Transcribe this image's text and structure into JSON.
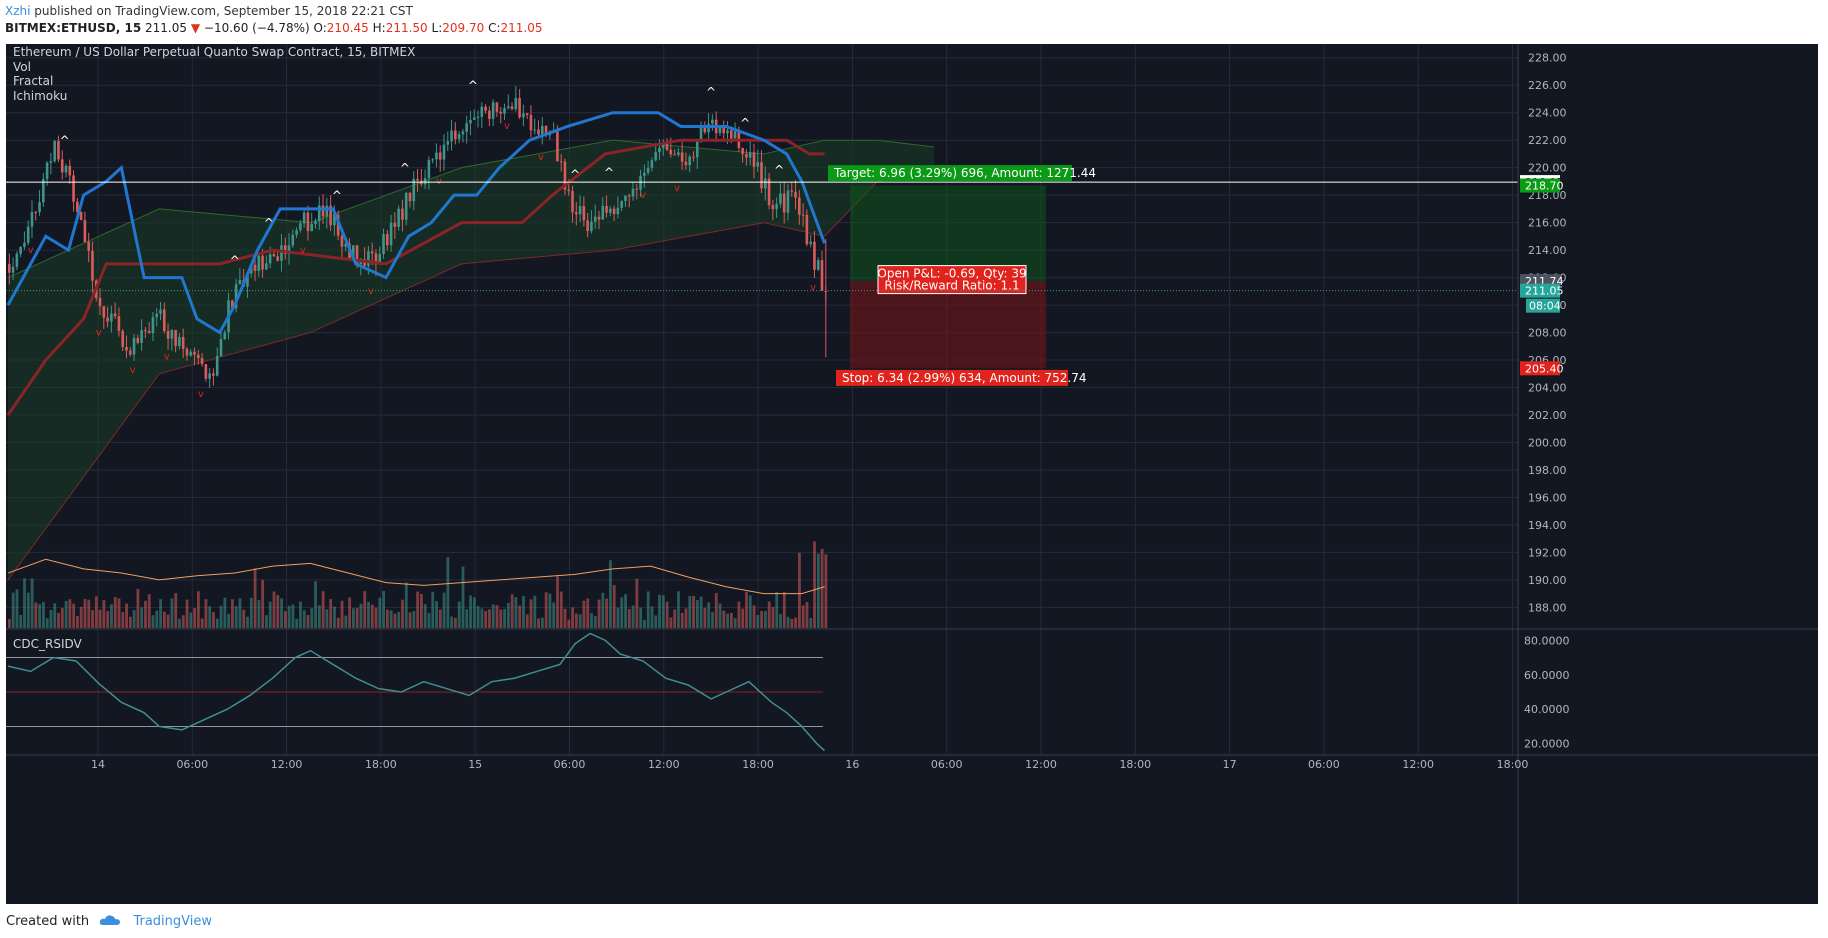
{
  "header": {
    "author": "Xzhi",
    "published": "published on TradingView.com, September 15, 2018 22:21 CST",
    "symbol": "BITMEX:ETHUSD, 15",
    "last": "211.05",
    "arrow": "▼",
    "change": "−10.60 (−4.78%)",
    "o_label": "O:",
    "o": "210.45",
    "h_label": "H:",
    "h": "211.50",
    "l_label": "L:",
    "l": "209.70",
    "c_label": "C:",
    "c": "211.05"
  },
  "legend": {
    "title": "Ethereum / US Dollar Perpetual Quanto Swap Contract, 15, BITMEX",
    "indicators": [
      "Vol",
      "Fractal",
      "Ichimoku"
    ]
  },
  "footer": {
    "created_with": "Created with",
    "brand": "TradingView"
  },
  "colors": {
    "background": "#131722",
    "grid": "#262b3a",
    "bull": "#3e958b",
    "bear": "#d95c5b",
    "baseline": "#1f77d0",
    "conversion": "#8b2328",
    "volume_ma": "#f0a060",
    "target": "#0a9b16",
    "stop": "#e0231c",
    "rsi": "#3f8e93"
  },
  "chart_data": [
    {
      "type": "candlestick",
      "title": "Ethereum / US Dollar Perpetual Quanto Swap Contract, 15, BITMEX",
      "ylim": [
        186.5,
        229.0
      ],
      "price_ticks": [
        "228.00",
        "226.00",
        "224.00",
        "222.00",
        "220.00",
        "218.00",
        "216.00",
        "214.00",
        "212.00",
        "210.00",
        "208.00",
        "206.00",
        "204.00",
        "202.00",
        "200.00",
        "198.00",
        "196.00",
        "194.00",
        "192.00",
        "190.00",
        "188.00"
      ],
      "time_ticks": [
        "14",
        "06:00",
        "12:00",
        "18:00",
        "15",
        "06:00",
        "12:00",
        "18:00",
        "16",
        "06:00",
        "12:00",
        "18:00",
        "17",
        "06:00",
        "12:00",
        "18:00"
      ],
      "price_path": [
        [
          0,
          213
        ],
        [
          6,
          216
        ],
        [
          12,
          222
        ],
        [
          18,
          217
        ],
        [
          24,
          210
        ],
        [
          32,
          207
        ],
        [
          40,
          209
        ],
        [
          48,
          206
        ],
        [
          54,
          205
        ],
        [
          58,
          210
        ],
        [
          66,
          213
        ],
        [
          72,
          214
        ],
        [
          78,
          216
        ],
        [
          84,
          217
        ],
        [
          90,
          214
        ],
        [
          96,
          213
        ],
        [
          102,
          216
        ],
        [
          108,
          219
        ],
        [
          114,
          221
        ],
        [
          120,
          223
        ],
        [
          126,
          224
        ],
        [
          132,
          225
        ],
        [
          136,
          224
        ],
        [
          140,
          223
        ],
        [
          144,
          222
        ],
        [
          148,
          218
        ],
        [
          152,
          216
        ],
        [
          158,
          217
        ],
        [
          164,
          218
        ],
        [
          170,
          221
        ],
        [
          174,
          222
        ],
        [
          178,
          220
        ],
        [
          184,
          223
        ],
        [
          190,
          223
        ],
        [
          194,
          221
        ],
        [
          198,
          220
        ],
        [
          202,
          217
        ],
        [
          208,
          218
        ],
        [
          212,
          214
        ],
        [
          216,
          211.05
        ]
      ],
      "volume_ma": [
        [
          0,
          190.5
        ],
        [
          10,
          191.5
        ],
        [
          20,
          190.8
        ],
        [
          30,
          190.5
        ],
        [
          40,
          190.0
        ],
        [
          50,
          190.3
        ],
        [
          60,
          190.5
        ],
        [
          70,
          191.0
        ],
        [
          80,
          191.2
        ],
        [
          90,
          190.5
        ],
        [
          100,
          189.8
        ],
        [
          110,
          189.6
        ],
        [
          120,
          189.8
        ],
        [
          130,
          190.0
        ],
        [
          140,
          190.2
        ],
        [
          150,
          190.4
        ],
        [
          160,
          190.8
        ],
        [
          170,
          191.0
        ],
        [
          180,
          190.2
        ],
        [
          190,
          189.5
        ],
        [
          200,
          189.0
        ],
        [
          210,
          189.0
        ],
        [
          216,
          189.5
        ]
      ],
      "kijun": [
        [
          0,
          210
        ],
        [
          4,
          212
        ],
        [
          10,
          215
        ],
        [
          16,
          214
        ],
        [
          20,
          218
        ],
        [
          26,
          219
        ],
        [
          30,
          220
        ],
        [
          36,
          212
        ],
        [
          46,
          212
        ],
        [
          50,
          209
        ],
        [
          56,
          208
        ],
        [
          60,
          210
        ],
        [
          66,
          214
        ],
        [
          72,
          217
        ],
        [
          86,
          217
        ],
        [
          92,
          213
        ],
        [
          100,
          212
        ],
        [
          106,
          215
        ],
        [
          112,
          216
        ],
        [
          118,
          218
        ],
        [
          124,
          218
        ],
        [
          130,
          220
        ],
        [
          138,
          222
        ],
        [
          148,
          223
        ],
        [
          160,
          224
        ],
        [
          172,
          224
        ],
        [
          178,
          223
        ],
        [
          190,
          223
        ],
        [
          200,
          222
        ],
        [
          206,
          221
        ],
        [
          210,
          219
        ],
        [
          214,
          216
        ],
        [
          216,
          214.5
        ]
      ],
      "tenkan": [
        [
          0,
          202
        ],
        [
          10,
          206
        ],
        [
          20,
          209
        ],
        [
          26,
          213
        ],
        [
          36,
          213
        ],
        [
          56,
          213
        ],
        [
          70,
          214
        ],
        [
          100,
          213
        ],
        [
          120,
          216
        ],
        [
          136,
          216
        ],
        [
          144,
          218
        ],
        [
          158,
          221
        ],
        [
          178,
          222
        ],
        [
          206,
          222
        ],
        [
          212,
          221
        ],
        [
          216,
          221
        ]
      ],
      "cloud_upper": [
        [
          0,
          212
        ],
        [
          40,
          217
        ],
        [
          80,
          216
        ],
        [
          120,
          220
        ],
        [
          160,
          222
        ],
        [
          200,
          221
        ],
        [
          216,
          222
        ],
        [
          230,
          222
        ],
        [
          245,
          221.5
        ]
      ],
      "cloud_lower": [
        [
          0,
          190
        ],
        [
          40,
          205
        ],
        [
          80,
          208
        ],
        [
          120,
          213
        ],
        [
          160,
          214
        ],
        [
          200,
          216
        ],
        [
          216,
          215
        ],
        [
          230,
          219
        ],
        [
          245,
          219.5
        ]
      ],
      "position": {
        "entry": 211.74,
        "target": 218.7,
        "stop": 205.4,
        "last": 211.05,
        "hline": 218.95,
        "target_label": "Target: 6.96 (3.29%) 696, Amount: 1271.44",
        "stop_label": "Stop: 6.34 (2.99%) 634, Amount: 752.74",
        "pnl_label": "Open P&L: -0.69, Qty: 39",
        "rr_label": "Risk/Reward Ratio: 1.1",
        "badges": [
          "218.95",
          "218.70",
          "211.74",
          "211.05",
          "08:04",
          "205.40"
        ]
      }
    },
    {
      "type": "line",
      "title": "CDC_RSIDV",
      "ylim": [
        14,
        86
      ],
      "ticks": [
        "80.0000",
        "60.0000",
        "40.0000",
        "20.0000"
      ],
      "levels": [
        70,
        50,
        30
      ],
      "rsi": [
        [
          0,
          65
        ],
        [
          6,
          62
        ],
        [
          12,
          70
        ],
        [
          18,
          68
        ],
        [
          24,
          55
        ],
        [
          30,
          44
        ],
        [
          36,
          38
        ],
        [
          40,
          30
        ],
        [
          46,
          28
        ],
        [
          52,
          34
        ],
        [
          58,
          40
        ],
        [
          64,
          48
        ],
        [
          70,
          58
        ],
        [
          76,
          70
        ],
        [
          80,
          74
        ],
        [
          86,
          66
        ],
        [
          92,
          58
        ],
        [
          98,
          52
        ],
        [
          104,
          50
        ],
        [
          110,
          56
        ],
        [
          116,
          52
        ],
        [
          122,
          48
        ],
        [
          128,
          56
        ],
        [
          134,
          58
        ],
        [
          140,
          62
        ],
        [
          146,
          66
        ],
        [
          150,
          78
        ],
        [
          154,
          84
        ],
        [
          158,
          80
        ],
        [
          162,
          72
        ],
        [
          168,
          68
        ],
        [
          174,
          58
        ],
        [
          180,
          54
        ],
        [
          186,
          46
        ],
        [
          190,
          50
        ],
        [
          196,
          56
        ],
        [
          202,
          44
        ],
        [
          206,
          38
        ],
        [
          210,
          30
        ],
        [
          214,
          20
        ],
        [
          216,
          16
        ]
      ]
    }
  ]
}
